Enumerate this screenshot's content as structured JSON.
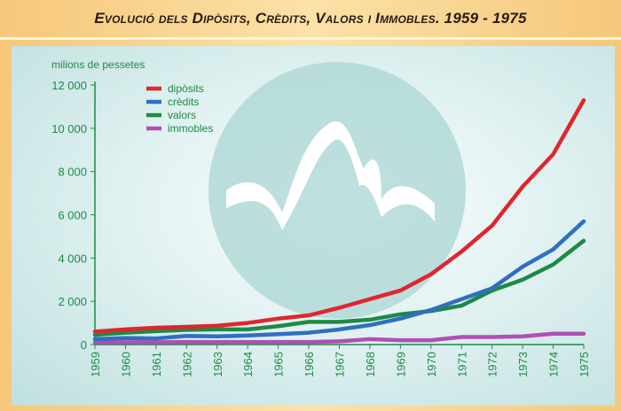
{
  "title": "Evolució dels Dipòsits, Crèdits, Valors i Immobles. 1959 - 1975",
  "chart_data": {
    "type": "line",
    "title": "Evolució dels Dipòsits, Crèdits, Valors i Immobles. 1959 - 1975",
    "ylabel": "milions de pessetes",
    "xlabel": "",
    "ylim": [
      0,
      12000
    ],
    "yticks": [
      "0",
      "2 000",
      "4 000",
      "6 000",
      "8 000",
      "10 000",
      "12 000"
    ],
    "ytick_values": [
      0,
      2000,
      4000,
      6000,
      8000,
      10000,
      12000
    ],
    "x": [
      "1959",
      "1960",
      "1961",
      "1962",
      "1963",
      "1964",
      "1965",
      "1966",
      "1967",
      "1968",
      "1969",
      "1970",
      "1971",
      "1972",
      "1973",
      "1974",
      "1975"
    ],
    "legend_position": "top-left",
    "grid": false,
    "series": [
      {
        "name": "dipòsits",
        "color": "#e0262e",
        "values": [
          600,
          700,
          780,
          820,
          870,
          1000,
          1200,
          1350,
          1700,
          2100,
          2500,
          3250,
          4300,
          5500,
          7300,
          8800,
          11300
        ]
      },
      {
        "name": "crèdits",
        "color": "#2f6fc0",
        "values": [
          250,
          300,
          280,
          400,
          380,
          420,
          480,
          550,
          700,
          900,
          1200,
          1600,
          2100,
          2600,
          3600,
          4400,
          5700
        ]
      },
      {
        "name": "valors",
        "color": "#1d8a45",
        "values": [
          450,
          550,
          620,
          680,
          700,
          700,
          850,
          1050,
          1050,
          1150,
          1400,
          1550,
          1800,
          2500,
          3000,
          3700,
          4800
        ]
      },
      {
        "name": "immobles",
        "color": "#b04fb5",
        "values": [
          100,
          110,
          110,
          120,
          120,
          120,
          120,
          120,
          150,
          250,
          200,
          200,
          350,
          350,
          380,
          500,
          500
        ]
      }
    ]
  }
}
